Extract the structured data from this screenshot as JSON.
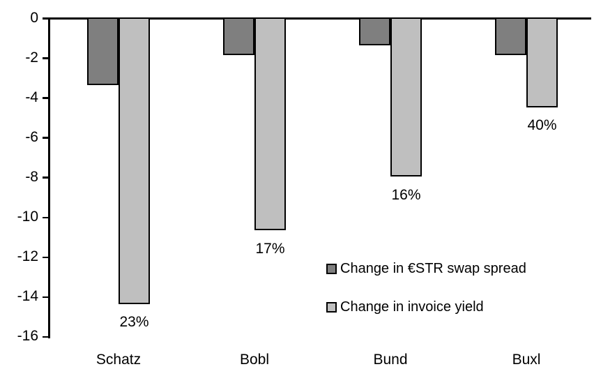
{
  "chart_data": {
    "type": "bar",
    "title": "",
    "xlabel": "",
    "ylabel": "",
    "categories": [
      "Schatz",
      "Bobl",
      "Bund",
      "Buxl"
    ],
    "series": [
      {
        "name": "Change in €STR swap spread",
        "color": "#7F7F7F",
        "values": [
          -3.3,
          -1.8,
          -1.3,
          -1.8
        ]
      },
      {
        "name": "Change in invoice yield",
        "color": "#BFBFBF",
        "values": [
          -14.3,
          -10.6,
          -7.9,
          -4.4
        ]
      }
    ],
    "bar_labels_series": "Change in invoice yield",
    "bar_labels": [
      "23%",
      "17%",
      "16%",
      "40%"
    ],
    "yticks": [
      0,
      -2,
      -4,
      -6,
      -8,
      -10,
      -12,
      -14,
      -16
    ],
    "ylim": [
      -16,
      0
    ],
    "grid": false,
    "legend_position": "inside-center-right",
    "axis_color": "#000000",
    "bar_border_color": "#000000",
    "background": "#FFFFFF"
  }
}
